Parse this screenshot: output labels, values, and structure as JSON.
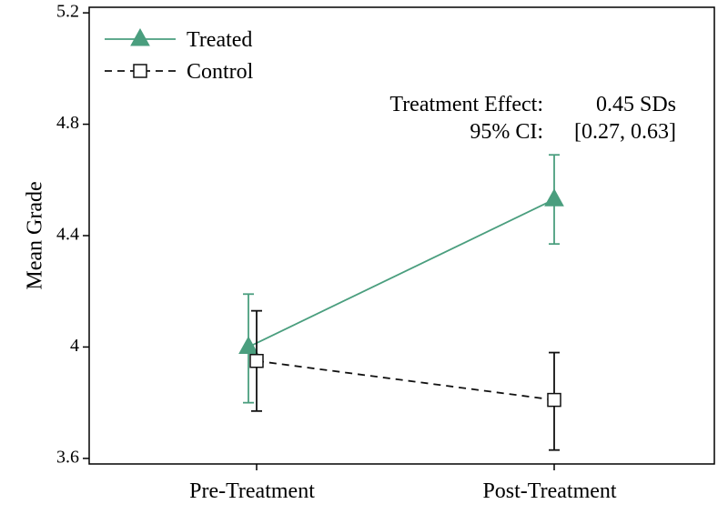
{
  "chart_data": {
    "type": "line",
    "title": "",
    "xlabel": "",
    "ylabel": "Mean Grade",
    "categories": [
      "Pre-Treatment",
      "Post-Treatment"
    ],
    "ylim": [
      3.58,
      5.22
    ],
    "yticks": [
      3.6,
      4,
      4.4,
      4.8,
      5.2
    ],
    "ytick_labels": [
      "3.6",
      "4",
      "4.4",
      "4.8",
      "5.2"
    ],
    "grid": false,
    "legend_position": "top-left",
    "series": [
      {
        "name": "Treated",
        "color": "#4a9e7e",
        "marker": "triangle",
        "line_style": "solid",
        "values": [
          4.0,
          4.53
        ],
        "ci_low": [
          3.8,
          4.37
        ],
        "ci_high": [
          4.19,
          4.69
        ]
      },
      {
        "name": "Control",
        "color": "#111111",
        "marker": "square",
        "line_style": "dashed",
        "values": [
          3.95,
          3.81
        ],
        "ci_low": [
          3.77,
          3.63
        ],
        "ci_high": [
          4.13,
          3.98
        ]
      }
    ],
    "annotations": {
      "effect_label": "Treatment Effect:",
      "effect_value": "0.45 SDs",
      "ci_label": "95% CI:",
      "ci_value": "[0.27, 0.63]"
    }
  }
}
